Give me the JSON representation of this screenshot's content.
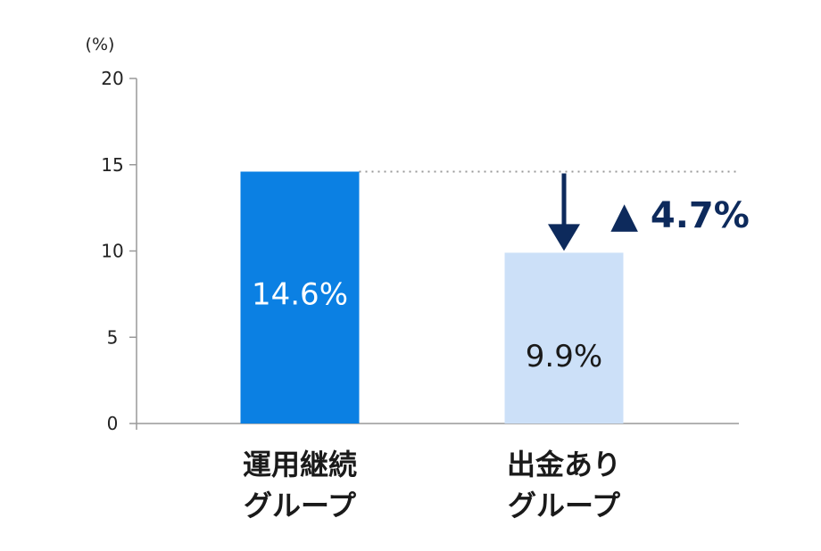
{
  "chart_data": {
    "type": "bar",
    "y_unit": "(%)",
    "ylim": [
      0,
      20
    ],
    "yticks": [
      0,
      5,
      10,
      15,
      20
    ],
    "grid": false,
    "categories": [
      {
        "line1": "運用継続",
        "line2": "グループ"
      },
      {
        "line1": "出金あり",
        "line2": "グループ"
      }
    ],
    "values": [
      14.6,
      9.9
    ],
    "value_labels": [
      "14.6%",
      "9.9%"
    ],
    "bar_colors": [
      "#0b80e3",
      "#cce0f8"
    ],
    "value_label_colors": [
      "#ffffff",
      "#1a1a1a"
    ],
    "annotation": {
      "text": "▲ 4.7%",
      "color": "#0d2a5c",
      "from_value": 14.6,
      "to_value": 9.9
    }
  }
}
